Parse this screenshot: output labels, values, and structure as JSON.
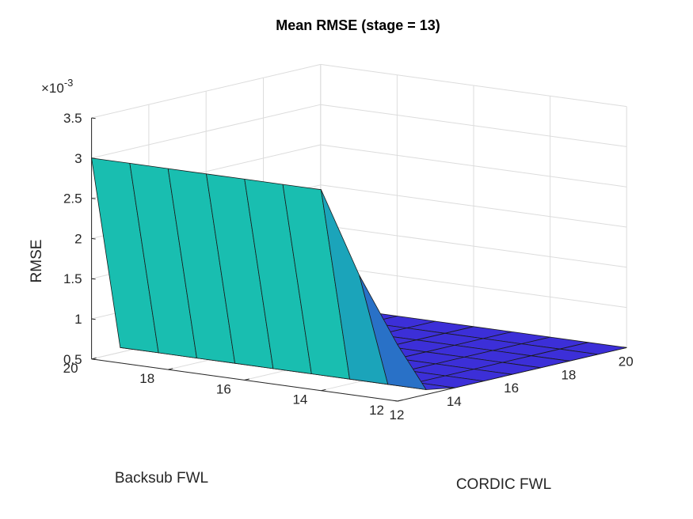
{
  "chart_data": {
    "type": "surface",
    "title": "Mean RMSE (stage = 13)",
    "xlabel": "CORDIC FWL",
    "ylabel": "Backsub FWL",
    "zlabel": "RMSE",
    "z_exponent_label": "×10",
    "z_exponent_power": "-3",
    "x": [
      12,
      13,
      14,
      15,
      16,
      17,
      18,
      19,
      20
    ],
    "y": [
      12,
      13,
      14,
      15,
      16,
      17,
      18,
      19,
      20
    ],
    "xlim": [
      12,
      20
    ],
    "ylim": [
      12,
      20
    ],
    "zlim": [
      0.5,
      3.5
    ],
    "x_ticks": [
      "12",
      "14",
      "16",
      "18",
      "20"
    ],
    "y_ticks": [
      "12",
      "14",
      "16",
      "18",
      "20"
    ],
    "z_ticks": [
      "0.5",
      "1",
      "1.5",
      "2",
      "2.5",
      "3",
      "3.5"
    ],
    "z_tick_values": [
      0.5,
      1,
      1.5,
      2,
      2.5,
      3,
      3.5
    ],
    "z_values_note_unit": "1e-3",
    "z_by_cordic_fwl": {
      "12": [
        1.2,
        2.0,
        3.0,
        3.0,
        3.0,
        3.0,
        3.0,
        3.0,
        3.0
      ],
      "13": [
        0.56,
        0.56,
        0.56,
        0.56,
        0.56,
        0.56,
        0.56,
        0.56,
        0.56
      ],
      "14": [
        0.5,
        0.5,
        0.5,
        0.5,
        0.5,
        0.5,
        0.5,
        0.5,
        0.5
      ],
      "15": [
        0.5,
        0.5,
        0.5,
        0.5,
        0.5,
        0.5,
        0.5,
        0.5,
        0.5
      ],
      "16": [
        0.5,
        0.5,
        0.5,
        0.5,
        0.5,
        0.5,
        0.5,
        0.5,
        0.5
      ],
      "17": [
        0.5,
        0.5,
        0.5,
        0.5,
        0.5,
        0.5,
        0.5,
        0.5,
        0.5
      ],
      "18": [
        0.5,
        0.5,
        0.5,
        0.5,
        0.5,
        0.5,
        0.5,
        0.5,
        0.5
      ],
      "19": [
        0.5,
        0.5,
        0.5,
        0.5,
        0.5,
        0.5,
        0.5,
        0.5,
        0.5
      ],
      "20": [
        0.5,
        0.5,
        0.5,
        0.5,
        0.5,
        0.5,
        0.5,
        0.5,
        0.5
      ]
    },
    "colormap": {
      "low": "#3c2fd8",
      "mid": "#14bdb4",
      "high": "#f6f00c"
    },
    "grid": true,
    "view": "3-D, x axis to lower-right, y axis to lower-left"
  }
}
